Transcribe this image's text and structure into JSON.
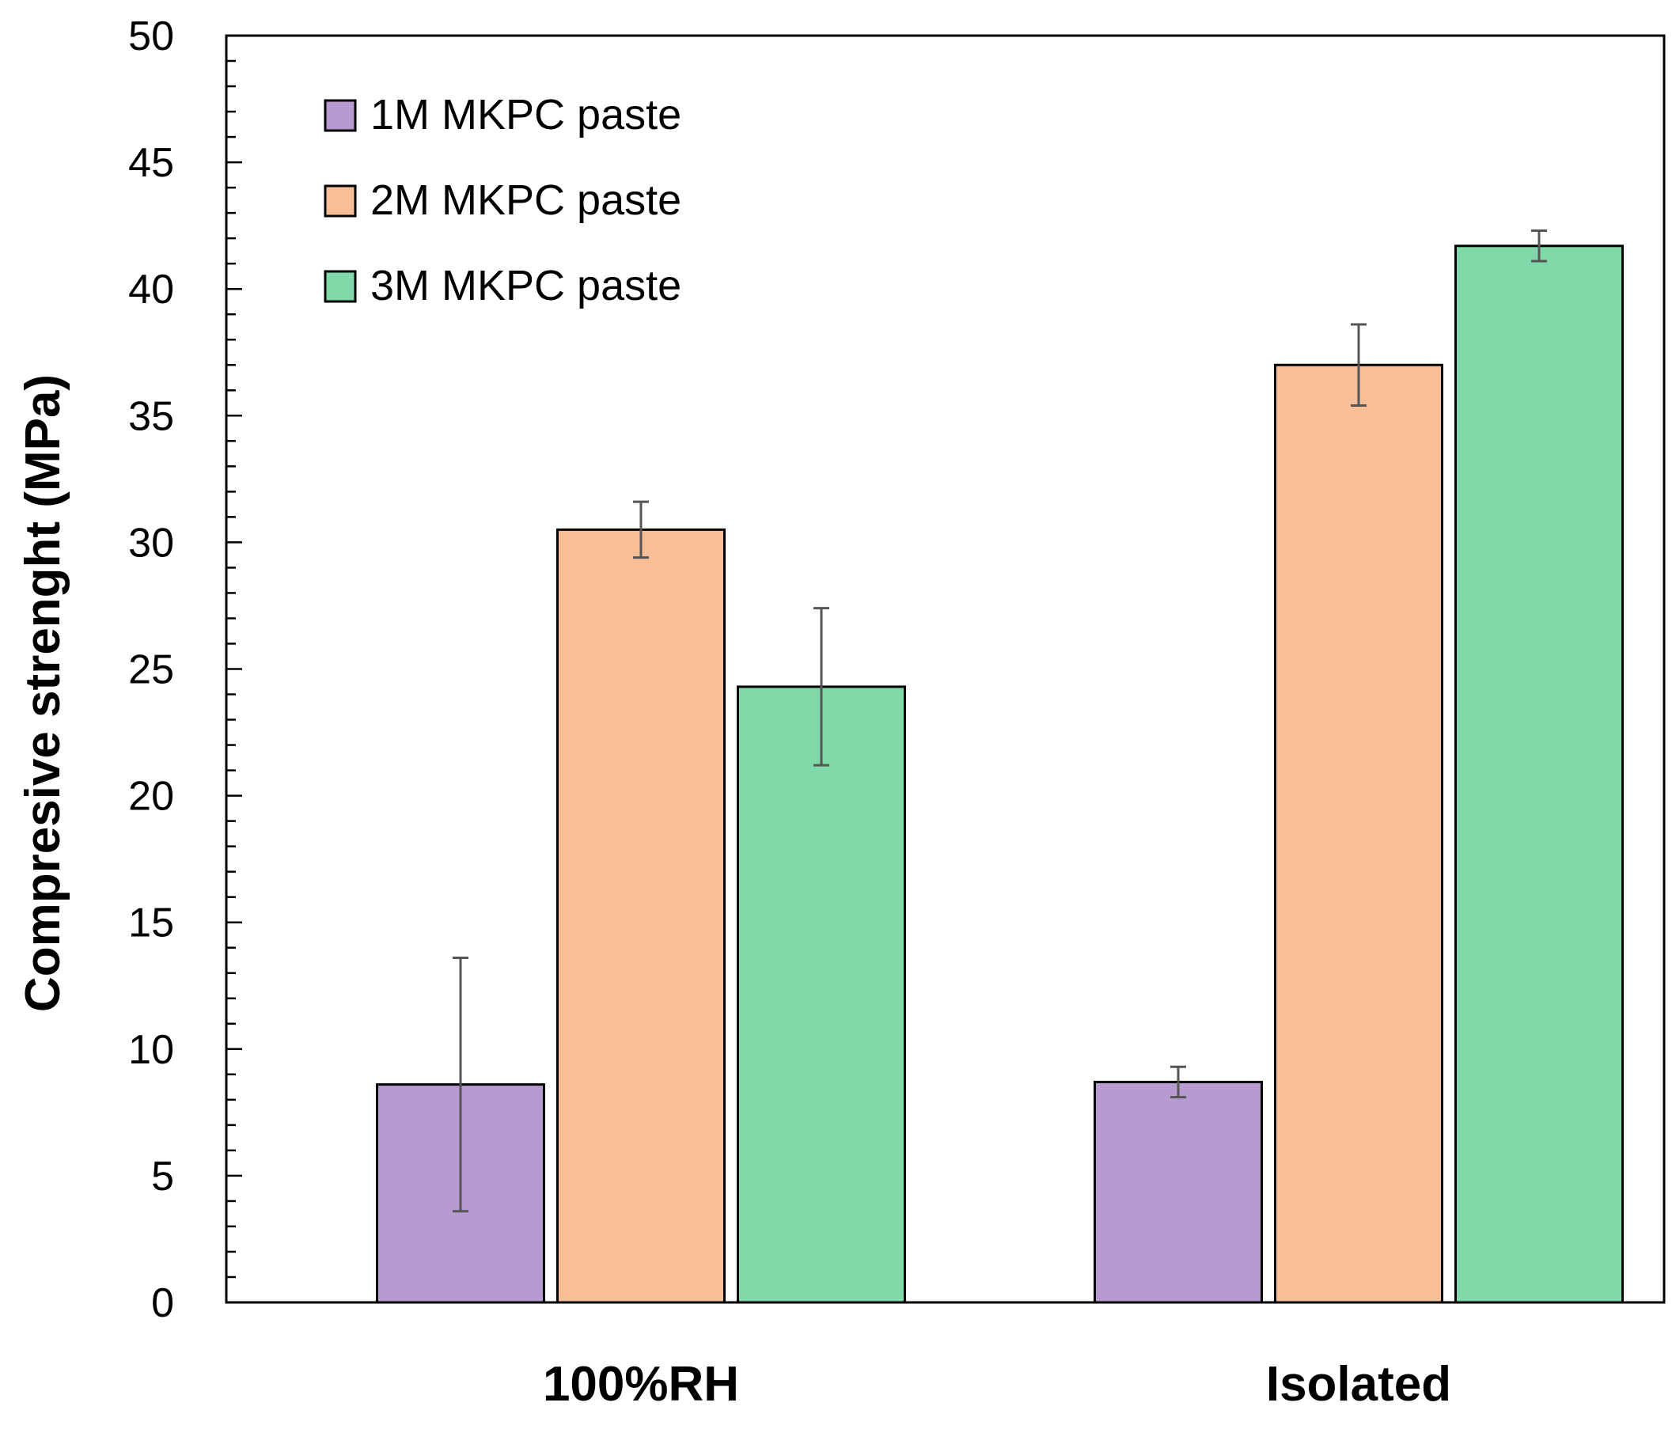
{
  "chart_data": {
    "type": "bar",
    "title": "",
    "xlabel": "",
    "ylabel": "Compresive strenght (MPa)",
    "ylim": [
      0,
      50
    ],
    "y_major_step": 5,
    "y_minor_step": 1,
    "grid": false,
    "legend_position": "top-left",
    "categories": [
      "100%RH",
      "Isolated"
    ],
    "series": [
      {
        "name": "1M MKPC paste",
        "color": "#b79ad0",
        "values": [
          8.6,
          8.7
        ],
        "errors": [
          5.0,
          0.6
        ]
      },
      {
        "name": "2M MKPC paste",
        "color": "#f7be98",
        "values": [
          30.5,
          37.0
        ],
        "errors": [
          1.1,
          1.6
        ]
      },
      {
        "name": "3M MKPC paste",
        "color": "#80d9a8",
        "values": [
          24.3,
          41.7
        ],
        "errors": [
          3.1,
          0.6
        ]
      }
    ],
    "y_tick_labels": [
      "0",
      "5",
      "10",
      "15",
      "20",
      "25",
      "30",
      "35",
      "40",
      "45",
      "50"
    ]
  },
  "colors": {
    "axis": "#000000",
    "bar_edge": "#000000",
    "error_bar": "#555555"
  }
}
